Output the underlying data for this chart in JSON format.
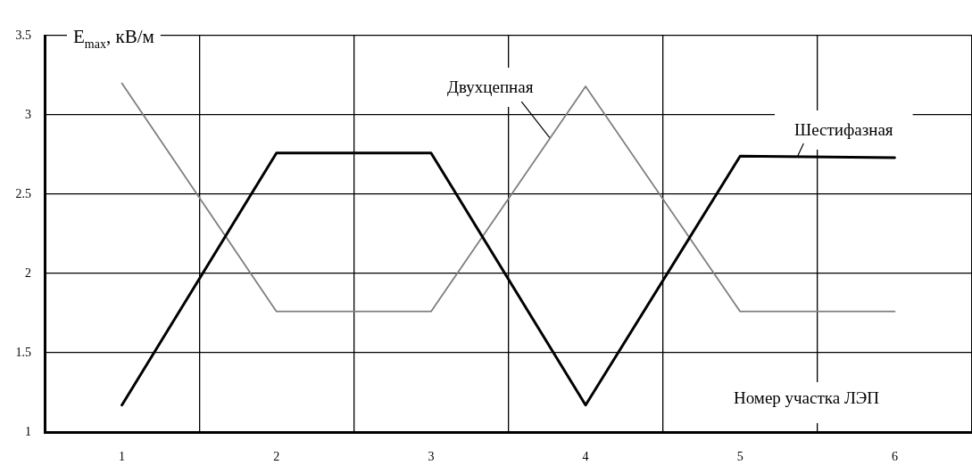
{
  "chart_data": {
    "type": "line",
    "xlabel": "Номер участка ЛЭП",
    "ylabel": "E$_{max}$, кВ/м",
    "categories": [
      "1",
      "2",
      "3",
      "4",
      "5",
      "6"
    ],
    "series": [
      {
        "name": "Шестифазная",
        "color": "#000000",
        "values": [
          1.17,
          2.76,
          2.76,
          1.17,
          2.74,
          2.73
        ]
      },
      {
        "name": "Двухцепная",
        "color": "#7f7f7f",
        "values": [
          3.2,
          1.76,
          1.76,
          3.18,
          1.76,
          1.76
        ]
      }
    ],
    "ylim": [
      1,
      3.5
    ],
    "yticks": [
      1,
      1.5,
      2,
      2.5,
      3,
      3.5
    ],
    "grid": true,
    "legend": false,
    "marker": "none",
    "line_style": "solid"
  }
}
